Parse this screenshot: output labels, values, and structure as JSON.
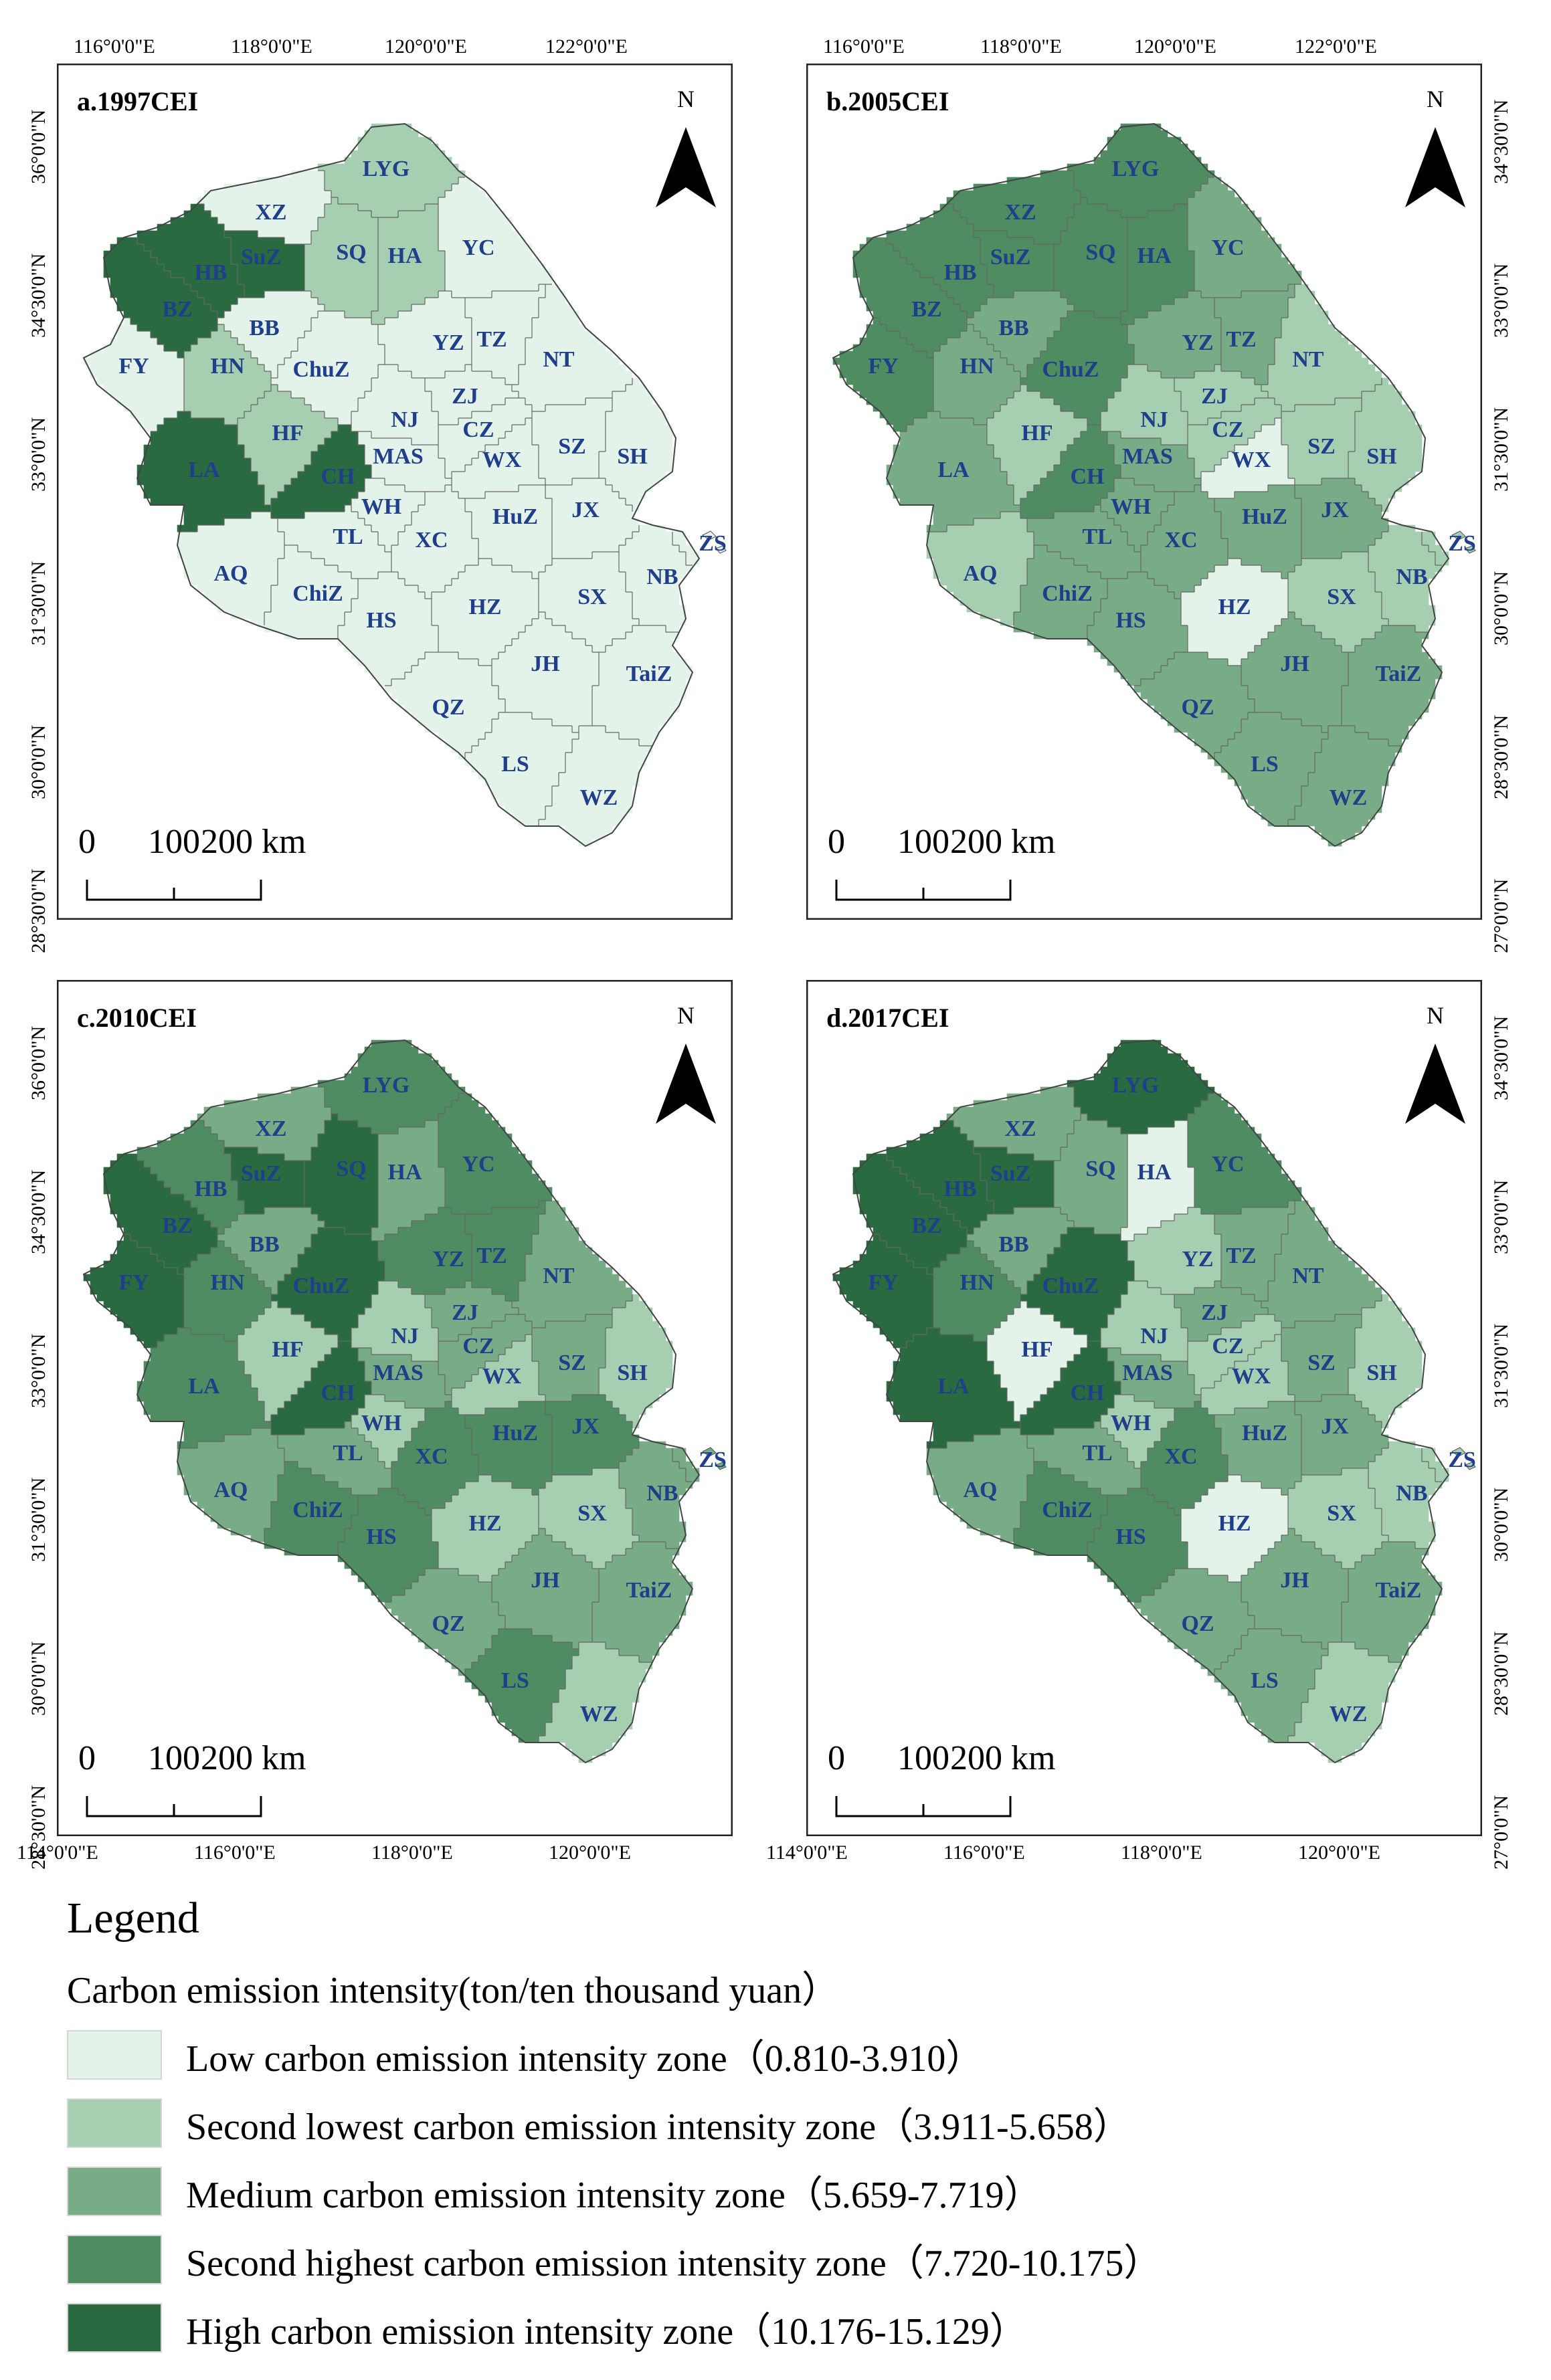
{
  "map": {
    "panels": [
      {
        "title": "a.1997CEI",
        "zones": {
          "XZ": 0,
          "LYG": 1,
          "SuZ": 4,
          "SQ": 1,
          "HA": 1,
          "YC": 0,
          "HB": 4,
          "BZ": 4,
          "BB": 0,
          "FY": 0,
          "HN": 1,
          "ChuZ": 0,
          "YZ": 0,
          "TZ": 0,
          "NT": 0,
          "HF": 1,
          "LA": 4,
          "CH": 4,
          "NJ": 0,
          "ZJ": 0,
          "CZ": 0,
          "MAS": 0,
          "WX": 0,
          "SZ": 0,
          "SH": 0,
          "WH": 0,
          "TL": 0,
          "XC": 0,
          "HuZ": 0,
          "JX": 0,
          "AQ": 0,
          "ChiZ": 0,
          "HS": 0,
          "HZ": 0,
          "SX": 0,
          "NB": 0,
          "ZS": 0,
          "JH": 0,
          "TaiZ": 0,
          "QZ": 0,
          "LS": 0,
          "WZ": 0
        }
      },
      {
        "title": "b.2005CEI",
        "zones": {
          "XZ": 3,
          "LYG": 3,
          "SuZ": 3,
          "SQ": 3,
          "HA": 3,
          "YC": 2,
          "HB": 3,
          "BZ": 3,
          "BB": 2,
          "FY": 3,
          "HN": 2,
          "ChuZ": 3,
          "YZ": 2,
          "TZ": 2,
          "NT": 1,
          "HF": 1,
          "LA": 2,
          "CH": 3,
          "NJ": 1,
          "ZJ": 1,
          "CZ": 1,
          "MAS": 2,
          "WX": 0,
          "SZ": 1,
          "SH": 1,
          "WH": 2,
          "TL": 2,
          "XC": 2,
          "HuZ": 2,
          "JX": 2,
          "AQ": 1,
          "ChiZ": 2,
          "HS": 2,
          "HZ": 0,
          "SX": 1,
          "NB": 1,
          "ZS": 1,
          "JH": 2,
          "TaiZ": 2,
          "QZ": 2,
          "LS": 2,
          "WZ": 2
        }
      },
      {
        "title": "c.2010CEI",
        "zones": {
          "XZ": 2,
          "LYG": 3,
          "SuZ": 4,
          "SQ": 4,
          "HA": 2,
          "YC": 3,
          "HB": 3,
          "BZ": 4,
          "BB": 2,
          "FY": 4,
          "HN": 3,
          "ChuZ": 4,
          "YZ": 3,
          "TZ": 3,
          "NT": 2,
          "HF": 1,
          "LA": 3,
          "CH": 4,
          "NJ": 1,
          "ZJ": 2,
          "CZ": 2,
          "MAS": 2,
          "WX": 1,
          "SZ": 2,
          "SH": 1,
          "WH": 1,
          "TL": 2,
          "XC": 3,
          "HuZ": 3,
          "JX": 3,
          "AQ": 2,
          "ChiZ": 3,
          "HS": 3,
          "HZ": 1,
          "SX": 1,
          "NB": 2,
          "ZS": 2,
          "JH": 2,
          "TaiZ": 2,
          "QZ": 2,
          "LS": 3,
          "WZ": 1
        }
      },
      {
        "title": "d.2017CEI",
        "zones": {
          "XZ": 2,
          "LYG": 4,
          "SuZ": 4,
          "SQ": 2,
          "HA": 0,
          "YC": 3,
          "HB": 4,
          "BZ": 4,
          "BB": 2,
          "FY": 4,
          "HN": 3,
          "ChuZ": 4,
          "YZ": 1,
          "TZ": 2,
          "NT": 2,
          "HF": 0,
          "LA": 4,
          "CH": 4,
          "NJ": 1,
          "ZJ": 2,
          "CZ": 1,
          "MAS": 2,
          "WX": 1,
          "SZ": 2,
          "SH": 1,
          "WH": 1,
          "TL": 2,
          "XC": 3,
          "HuZ": 2,
          "JX": 2,
          "AQ": 2,
          "ChiZ": 3,
          "HS": 3,
          "HZ": 0,
          "SX": 1,
          "NB": 1,
          "ZS": 1,
          "JH": 2,
          "TaiZ": 2,
          "QZ": 2,
          "LS": 2,
          "WZ": 1
        }
      }
    ],
    "north_label": "N",
    "scale_labels": [
      "0",
      "100",
      "200 km"
    ],
    "top_lon_labels": [
      "116°0'0\"E",
      "118°0'0\"E",
      "120°0'0\"E",
      "122°0'0\"E"
    ],
    "bottom_lon_labels": [
      "114°0'0\"E",
      "116°0'0\"E",
      "118°0'0\"E",
      "120°0'0\"E"
    ],
    "left_lat_labels": [
      "36°0'0\"N",
      "34°30'0\"N",
      "33°0'0\"N",
      "31°30'0\"N",
      "30°0'0\"N",
      "28°30'0\"N"
    ],
    "right_lat_labels": [
      "34°30'0\"N",
      "33°0'0\"N",
      "31°30'0\"N",
      "30°0'0\"N",
      "28°30'0\"N",
      "27°0'0\"N"
    ]
  },
  "legend": {
    "title": "Legend",
    "subtitle": "Carbon emission intensity(ton/ten thousand yuan）",
    "colors": [
      "#e4f3ea",
      "#a6cfb2",
      "#78ac86",
      "#4f8c62",
      "#2a6a40"
    ],
    "items": [
      {
        "label": "Low carbon emission intensity zone（0.810-3.910）"
      },
      {
        "label": "Second lowest carbon emission intensity zone（3.911-5.658）"
      },
      {
        "label": "Medium carbon emission intensity zone（5.659-7.719）"
      },
      {
        "label": "Second highest carbon emission intensity zone（7.720-10.175）"
      },
      {
        "label": "High carbon emission intensity zone（10.176-15.129）"
      }
    ]
  }
}
